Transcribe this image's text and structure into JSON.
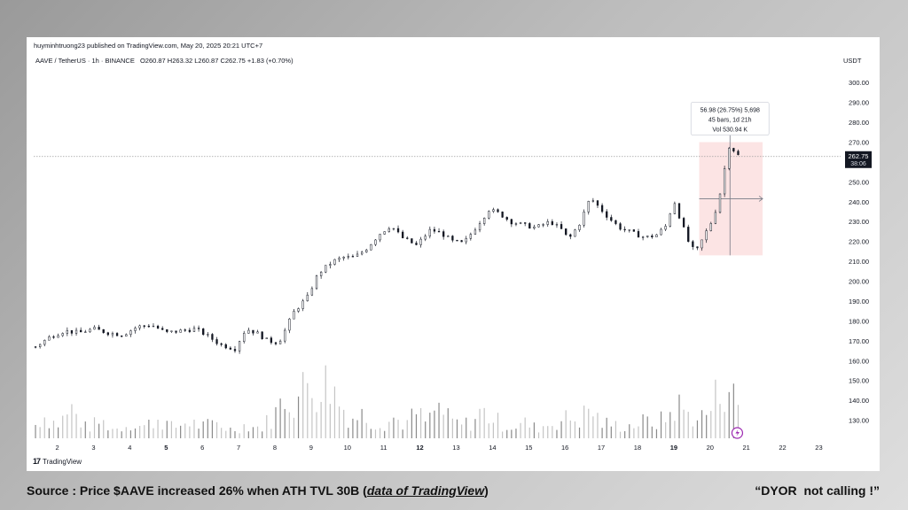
{
  "header": {
    "attribution": "huyminhtruong23 published on TradingView.com, May 20, 2025 20:21 UTC+7",
    "symbol": "AAVE / TetherUS · 1h · BINANCE",
    "ohlc": "O260.87 H263.32 L260.87 C262.75 +1.83 (+0.70%)",
    "currency": "USDT"
  },
  "measure_tooltip": {
    "line1": "56.98 (26.75%) 5,698",
    "line2": "45 bars, 1d 21h",
    "line3": "Vol 530.94 K"
  },
  "price_label": {
    "price": "262.75",
    "countdown": "38:06"
  },
  "footer": {
    "logo_text": "TradingView"
  },
  "caption": {
    "left_prefix": "Source : Price $AAVE increased 26% when ATH TVL 30B (",
    "left_link": "data of TradingView",
    "left_suffix": ")",
    "right": "“DYOR  not calling !”"
  },
  "colors": {
    "up": "#ffffff",
    "down": "#131722",
    "volume": "#9e9e9e",
    "measure_fill": "#fce4e4",
    "price_line": "#9e9e9e"
  },
  "chart_data": {
    "type": "candlestick",
    "yaxis": {
      "range": [
        120,
        305
      ],
      "ticks": [
        "300.00",
        "290.00",
        "280.00",
        "270.00",
        "260.00",
        "250.00",
        "240.00",
        "230.00",
        "220.00",
        "210.00",
        "200.00",
        "190.00",
        "180.00",
        "170.00",
        "160.00",
        "150.00",
        "140.00",
        "130.00"
      ]
    },
    "xaxis": {
      "range": [
        1.35,
        23.6
      ],
      "ticks": [
        {
          "label": "2",
          "x": 2,
          "bold": false
        },
        {
          "label": "3",
          "x": 3,
          "bold": false
        },
        {
          "label": "4",
          "x": 4,
          "bold": false
        },
        {
          "label": "5",
          "x": 5,
          "bold": true
        },
        {
          "label": "6",
          "x": 6,
          "bold": false
        },
        {
          "label": "7",
          "x": 7,
          "bold": false
        },
        {
          "label": "8",
          "x": 8,
          "bold": false
        },
        {
          "label": "9",
          "x": 9,
          "bold": false
        },
        {
          "label": "10",
          "x": 10,
          "bold": false
        },
        {
          "label": "11",
          "x": 11,
          "bold": false
        },
        {
          "label": "12",
          "x": 12,
          "bold": true
        },
        {
          "label": "13",
          "x": 13,
          "bold": false
        },
        {
          "label": "14",
          "x": 14,
          "bold": false
        },
        {
          "label": "15",
          "x": 15,
          "bold": false
        },
        {
          "label": "16",
          "x": 16,
          "bold": false
        },
        {
          "label": "17",
          "x": 17,
          "bold": false
        },
        {
          "label": "18",
          "x": 18,
          "bold": false
        },
        {
          "label": "19",
          "x": 19,
          "bold": true
        },
        {
          "label": "20",
          "x": 20,
          "bold": false
        },
        {
          "label": "21",
          "x": 21,
          "bold": false
        },
        {
          "label": "22",
          "x": 22,
          "bold": false
        },
        {
          "label": "23",
          "x": 23,
          "bold": false
        }
      ]
    },
    "price_path": [
      [
        1.4,
        167
      ],
      [
        1.8,
        172
      ],
      [
        2.2,
        175
      ],
      [
        2.6,
        174
      ],
      [
        3.0,
        176
      ],
      [
        3.4,
        174
      ],
      [
        3.8,
        173
      ],
      [
        4.2,
        177
      ],
      [
        4.6,
        178
      ],
      [
        5.0,
        174
      ],
      [
        5.4,
        175
      ],
      [
        5.8,
        176
      ],
      [
        6.1,
        173
      ],
      [
        6.5,
        168
      ],
      [
        6.9,
        166
      ],
      [
        7.2,
        176
      ],
      [
        7.5,
        174
      ],
      [
        7.8,
        170
      ],
      [
        8.1,
        169
      ],
      [
        8.3,
        176
      ],
      [
        8.5,
        184
      ],
      [
        8.9,
        192
      ],
      [
        9.2,
        204
      ],
      [
        9.6,
        210
      ],
      [
        9.9,
        212
      ],
      [
        10.2,
        212
      ],
      [
        10.5,
        216
      ],
      [
        10.9,
        224
      ],
      [
        11.2,
        228
      ],
      [
        11.5,
        222
      ],
      [
        11.9,
        218
      ],
      [
        12.3,
        226
      ],
      [
        12.6,
        224
      ],
      [
        12.9,
        220
      ],
      [
        13.2,
        219
      ],
      [
        13.5,
        226
      ],
      [
        13.9,
        236
      ],
      [
        14.2,
        234
      ],
      [
        14.5,
        230
      ],
      [
        14.9,
        228
      ],
      [
        15.2,
        227
      ],
      [
        15.6,
        230
      ],
      [
        15.9,
        226
      ],
      [
        16.1,
        221
      ],
      [
        16.4,
        229
      ],
      [
        16.7,
        242
      ],
      [
        16.9,
        238
      ],
      [
        17.2,
        232
      ],
      [
        17.5,
        227
      ],
      [
        17.9,
        224
      ],
      [
        18.2,
        222
      ],
      [
        18.5,
        223
      ],
      [
        18.8,
        228
      ],
      [
        19.0,
        241
      ],
      [
        19.2,
        230
      ],
      [
        19.4,
        220
      ],
      [
        19.6,
        214
      ],
      [
        19.9,
        225
      ],
      [
        20.1,
        232
      ],
      [
        20.3,
        246
      ],
      [
        20.45,
        262
      ],
      [
        20.55,
        270
      ],
      [
        20.65,
        266
      ],
      [
        20.8,
        262.75
      ]
    ],
    "volume_profile": [
      [
        1.4,
        8
      ],
      [
        1.6,
        14
      ],
      [
        2.0,
        8
      ],
      [
        2.4,
        17
      ],
      [
        2.8,
        6
      ],
      [
        3.2,
        10
      ],
      [
        3.6,
        5
      ],
      [
        4.0,
        9
      ],
      [
        4.4,
        7
      ],
      [
        4.8,
        12
      ],
      [
        5.2,
        6
      ],
      [
        5.6,
        10
      ],
      [
        6.0,
        7
      ],
      [
        6.4,
        9
      ],
      [
        6.8,
        5
      ],
      [
        7.2,
        8
      ],
      [
        7.6,
        6
      ],
      [
        8.0,
        14
      ],
      [
        8.3,
        26
      ],
      [
        8.6,
        22
      ],
      [
        8.9,
        33
      ],
      [
        9.2,
        30
      ],
      [
        9.5,
        34
      ],
      [
        9.8,
        20
      ],
      [
        10.1,
        12
      ],
      [
        10.4,
        14
      ],
      [
        10.7,
        10
      ],
      [
        11.0,
        9
      ],
      [
        11.3,
        12
      ],
      [
        11.6,
        8
      ],
      [
        11.9,
        15
      ],
      [
        12.2,
        9
      ],
      [
        12.5,
        19
      ],
      [
        12.8,
        11
      ],
      [
        13.1,
        8
      ],
      [
        13.4,
        9
      ],
      [
        13.7,
        16
      ],
      [
        14.0,
        12
      ],
      [
        14.3,
        8
      ],
      [
        14.6,
        7
      ],
      [
        14.9,
        9
      ],
      [
        15.2,
        6
      ],
      [
        15.5,
        8
      ],
      [
        15.8,
        10
      ],
      [
        16.1,
        12
      ],
      [
        16.4,
        11
      ],
      [
        16.7,
        18
      ],
      [
        17.0,
        9
      ],
      [
        17.3,
        8
      ],
      [
        17.6,
        7
      ],
      [
        17.9,
        8
      ],
      [
        18.2,
        10
      ],
      [
        18.5,
        9
      ],
      [
        18.8,
        12
      ],
      [
        19.1,
        20
      ],
      [
        19.4,
        14
      ],
      [
        19.7,
        12
      ],
      [
        20.0,
        16
      ],
      [
        20.2,
        27
      ],
      [
        20.35,
        30
      ],
      [
        20.5,
        35
      ],
      [
        20.65,
        24
      ],
      [
        20.8,
        18
      ]
    ],
    "volume_ylim": [
      0,
      40
    ],
    "measure_box": {
      "x0": 19.7,
      "x1": 21.45,
      "y0": 213,
      "y1": 270,
      "mid_y": 241.5,
      "vline_x": 20.55
    },
    "last_price": 262.75,
    "last_x": 20.8
  }
}
